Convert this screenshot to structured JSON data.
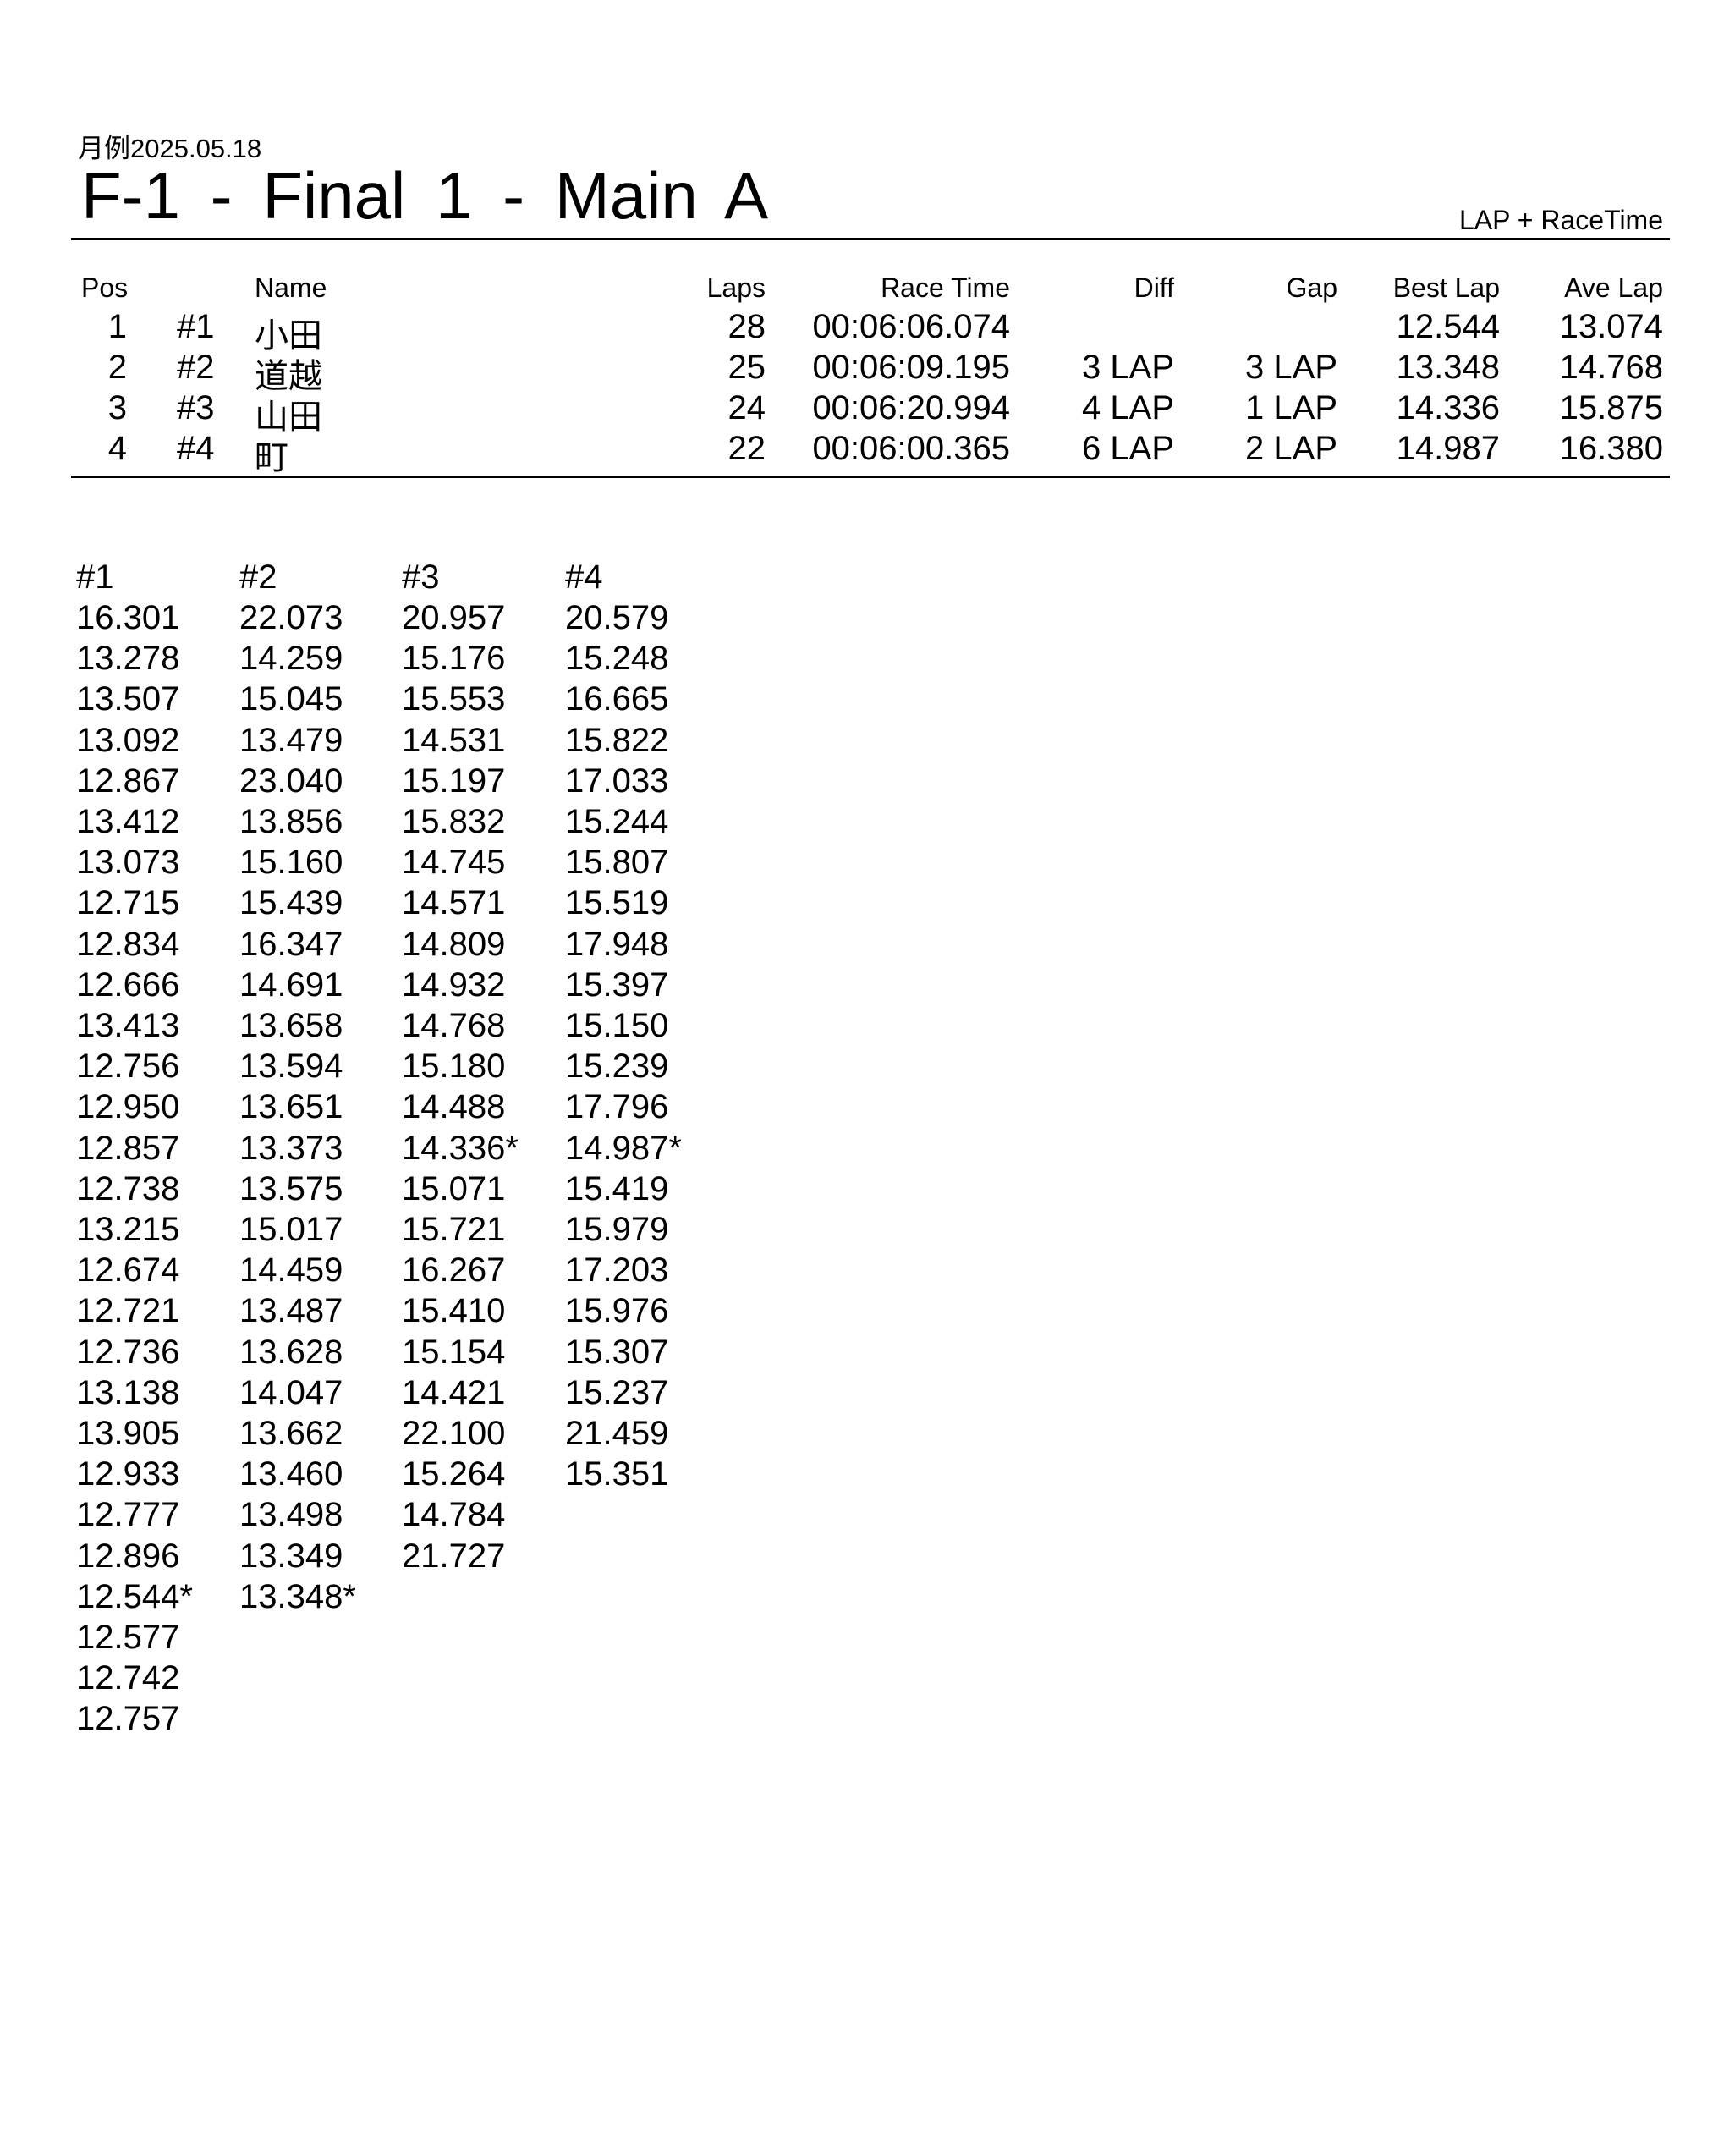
{
  "header": {
    "subtitle": "月例2025.05.18",
    "title": "F-1  -  Final 1  -  Main A",
    "mode": "LAP + RaceTime"
  },
  "results": {
    "columns": {
      "pos": "Pos",
      "name": "Name",
      "laps": "Laps",
      "race_time": "Race Time",
      "diff": "Diff",
      "gap": "Gap",
      "best_lap": "Best Lap",
      "ave_lap": "Ave Lap"
    },
    "rows": [
      {
        "pos": "1",
        "no": "#1",
        "name": "小田",
        "laps": "28",
        "race_time": "00:06:06.074",
        "diff": "",
        "gap": "",
        "best_lap": "12.544",
        "ave_lap": "13.074"
      },
      {
        "pos": "2",
        "no": "#2",
        "name": "道越",
        "laps": "25",
        "race_time": "00:06:09.195",
        "diff": "3 LAP",
        "gap": "3 LAP",
        "best_lap": "13.348",
        "ave_lap": "14.768"
      },
      {
        "pos": "3",
        "no": "#3",
        "name": "山田",
        "laps": "24",
        "race_time": "00:06:20.994",
        "diff": "4 LAP",
        "gap": "1 LAP",
        "best_lap": "14.336",
        "ave_lap": "15.875"
      },
      {
        "pos": "4",
        "no": "#4",
        "name": "町",
        "laps": "22",
        "race_time": "00:06:00.365",
        "diff": "6 LAP",
        "gap": "2 LAP",
        "best_lap": "14.987",
        "ave_lap": "16.380"
      }
    ]
  },
  "lap_times": {
    "columns": [
      {
        "label": "#1",
        "laps": [
          "16.301",
          "13.278",
          "13.507",
          "13.092",
          "12.867",
          "13.412",
          "13.073",
          "12.715",
          "12.834",
          "12.666",
          "13.413",
          "12.756",
          "12.950",
          "12.857",
          "12.738",
          "13.215",
          "12.674",
          "12.721",
          "12.736",
          "13.138",
          "13.905",
          "12.933",
          "12.777",
          "12.896",
          "12.544*",
          "12.577",
          "12.742",
          "12.757"
        ]
      },
      {
        "label": "#2",
        "laps": [
          "22.073",
          "14.259",
          "15.045",
          "13.479",
          "23.040",
          "13.856",
          "15.160",
          "15.439",
          "16.347",
          "14.691",
          "13.658",
          "13.594",
          "13.651",
          "13.373",
          "13.575",
          "15.017",
          "14.459",
          "13.487",
          "13.628",
          "14.047",
          "13.662",
          "13.460",
          "13.498",
          "13.349",
          "13.348*"
        ]
      },
      {
        "label": "#3",
        "laps": [
          "20.957",
          "15.176",
          "15.553",
          "14.531",
          "15.197",
          "15.832",
          "14.745",
          "14.571",
          "14.809",
          "14.932",
          "14.768",
          "15.180",
          "14.488",
          "14.336*",
          "15.071",
          "15.721",
          "16.267",
          "15.410",
          "15.154",
          "14.421",
          "22.100",
          "15.264",
          "14.784",
          "21.727"
        ]
      },
      {
        "label": "#4",
        "laps": [
          "20.579",
          "15.248",
          "16.665",
          "15.822",
          "17.033",
          "15.244",
          "15.807",
          "15.519",
          "17.948",
          "15.397",
          "15.150",
          "15.239",
          "17.796",
          "14.987*",
          "15.419",
          "15.979",
          "17.203",
          "15.976",
          "15.307",
          "15.237",
          "21.459",
          "15.351"
        ]
      }
    ]
  }
}
